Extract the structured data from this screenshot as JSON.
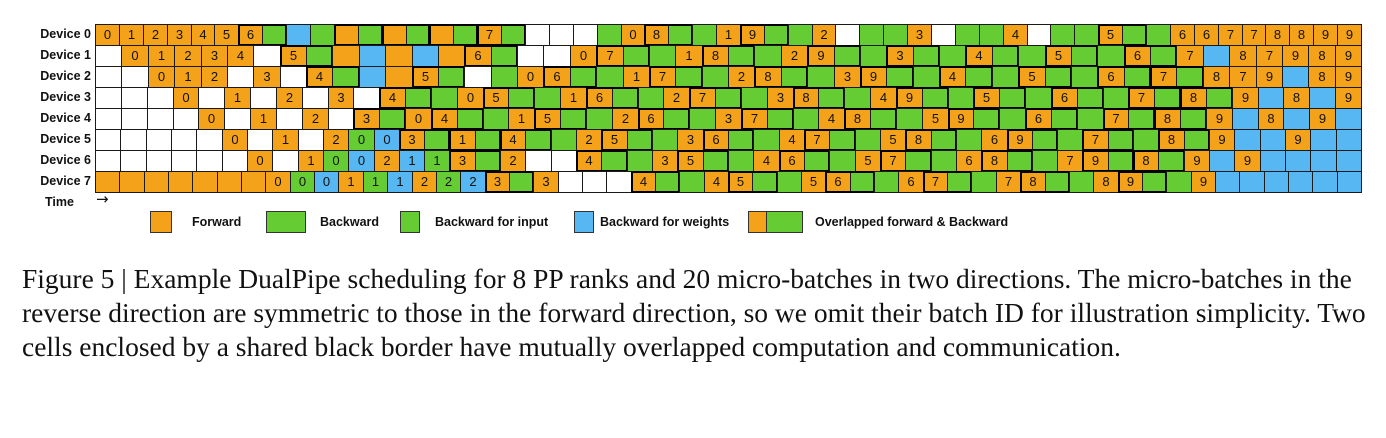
{
  "colors": {
    "F": "#f5a21b",
    "B": "#66cc33",
    "W": "#57b7f2",
    "empty": "#ffffff"
  },
  "figure": {
    "time_label": "Time",
    "time_arrow": "→",
    "devices": [
      {
        "label": "Device 0",
        "cells": [
          "F:0",
          "F:1",
          "F:2",
          "F:3",
          "F:4",
          "F:5",
          "F:6",
          "B",
          "W",
          "B",
          "F",
          "B",
          "F",
          "B",
          "F",
          "B",
          "F:7",
          "B",
          "E",
          "E",
          "E",
          "B",
          "F:0",
          "F:8",
          "B",
          "B",
          "F:1",
          "F:9",
          "B",
          "B",
          "F:2",
          "E",
          "B",
          "B",
          "F:3",
          "E",
          "B",
          "B",
          "F:4",
          "E",
          "B",
          "B",
          "F:5",
          "B",
          "B",
          "F:6",
          "F:6",
          "F:7",
          "F:7",
          "F:8",
          "F:8",
          "F:9",
          "F:9"
        ]
      },
      {
        "label": "Device 1",
        "cells": [
          "E",
          "F:0",
          "F:1",
          "F:2",
          "F:3",
          "F:4",
          "E",
          "F:5",
          "B",
          "F",
          "W",
          "F",
          "W",
          "F",
          "F:6",
          "B",
          "E",
          "E",
          "F:0",
          "F:7",
          "B",
          "B",
          "F:1",
          "F:8",
          "B",
          "B",
          "F:2",
          "F:9",
          "B",
          "B",
          "F:3",
          "B",
          "B",
          "F:4",
          "B",
          "B",
          "F:5",
          "B",
          "B",
          "F:6",
          "B",
          "F:7",
          "W",
          "F:8",
          "F:7",
          "F:9",
          "F:8",
          "F:9"
        ]
      },
      {
        "label": "Device 2",
        "cells": [
          "E",
          "E",
          "F:0",
          "F:1",
          "F:2",
          "E",
          "F:3",
          "E",
          "F:4",
          "B",
          "W",
          "F",
          "F:5",
          "B",
          "E",
          "B",
          "F:0",
          "F:6",
          "B",
          "B",
          "F:1",
          "F:7",
          "B",
          "B",
          "F:2",
          "F:8",
          "B",
          "B",
          "F:3",
          "F:9",
          "B",
          "B",
          "F:4",
          "B",
          "B",
          "F:5",
          "B",
          "B",
          "F:6",
          "B",
          "F:7",
          "B",
          "F:8",
          "F:7",
          "F:9",
          "W",
          "F:8",
          "F:9"
        ]
      },
      {
        "label": "Device 3",
        "cells": [
          "E",
          "E",
          "E",
          "F:0",
          "E",
          "F:1",
          "E",
          "F:2",
          "E",
          "F:3",
          "E",
          "F:4",
          "B",
          "B",
          "F:0",
          "F:5",
          "B",
          "B",
          "F:1",
          "F:6",
          "B",
          "B",
          "F:2",
          "F:7",
          "B",
          "B",
          "F:3",
          "F:8",
          "B",
          "B",
          "F:4",
          "F:9",
          "B",
          "B",
          "F:5",
          "B",
          "B",
          "F:6",
          "B",
          "B",
          "F:7",
          "B",
          "F:8",
          "B",
          "F:9",
          "W",
          "F:8",
          "W",
          "F:9"
        ]
      },
      {
        "label": "Device 4",
        "cells": [
          "E",
          "E",
          "E",
          "E",
          "F:0",
          "E",
          "F:1",
          "E",
          "F:2",
          "E",
          "F:3",
          "B",
          "F:0",
          "F:4",
          "B",
          "B",
          "F:1",
          "F:5",
          "B",
          "B",
          "F:2",
          "F:6",
          "B",
          "B",
          "F:3",
          "F:7",
          "B",
          "B",
          "F:4",
          "F:8",
          "B",
          "B",
          "F:5",
          "F:9",
          "B",
          "B",
          "F:6",
          "B",
          "B",
          "F:7",
          "B",
          "F:8",
          "B",
          "F:9",
          "W",
          "F:8",
          "W",
          "F:9",
          "W"
        ]
      },
      {
        "label": "Device 5",
        "cells": [
          "E",
          "E",
          "E",
          "E",
          "E",
          "F:0",
          "E",
          "F:1",
          "E",
          "F:2",
          "B:0",
          "W:0",
          "F:3",
          "B",
          "F:1",
          "B",
          "F:4",
          "B",
          "B",
          "F:2",
          "F:5",
          "B",
          "B",
          "F:3",
          "F:6",
          "B",
          "B",
          "F:4",
          "F:7",
          "B",
          "B",
          "F:5",
          "F:8",
          "B",
          "B",
          "F:6",
          "F:9",
          "B",
          "B",
          "F:7",
          "B",
          "B",
          "F:8",
          "B",
          "F:9",
          "W",
          "W",
          "F:9",
          "W",
          "W"
        ]
      },
      {
        "label": "Device 6",
        "cells": [
          "E",
          "E",
          "E",
          "E",
          "E",
          "E",
          "F:0",
          "E",
          "F:1",
          "B:0",
          "W:0",
          "F:2",
          "W:1",
          "B:1",
          "F:3",
          "B",
          "F:2",
          "E",
          "E",
          "F:4",
          "B",
          "B",
          "F:3",
          "F:5",
          "B",
          "B",
          "F:4",
          "F:6",
          "B",
          "B",
          "F:5",
          "F:7",
          "B",
          "B",
          "F:6",
          "F:8",
          "B",
          "B",
          "F:7",
          "F:9",
          "B",
          "F:8",
          "B",
          "F:9",
          "W",
          "F:9",
          "W",
          "W",
          "W",
          "W"
        ]
      },
      {
        "label": "Device 7",
        "cells": [
          "F",
          "F",
          "F",
          "F",
          "F",
          "F",
          "F",
          "F:0",
          "B:0",
          "W:0",
          "F:1",
          "B:1",
          "W:1",
          "F:2",
          "B:2",
          "W:2",
          "F:3",
          "B",
          "F:3",
          "E",
          "E",
          "E",
          "F:4",
          "B",
          "B",
          "F:4",
          "F:5",
          "B",
          "B",
          "F:5",
          "F:6",
          "B",
          "B",
          "F:6",
          "F:7",
          "B",
          "B",
          "F:7",
          "F:8",
          "B",
          "B",
          "F:8",
          "F:9",
          "B",
          "B",
          "F:9",
          "W",
          "W",
          "W",
          "W",
          "W",
          "W"
        ]
      }
    ],
    "legend": [
      {
        "key": "forward",
        "label": "Forward"
      },
      {
        "key": "backward",
        "label": "Backward"
      },
      {
        "key": "backward-input",
        "label": "Backward for input"
      },
      {
        "key": "backward-weights",
        "label": "Backward for weights"
      },
      {
        "key": "overlapped",
        "label": "Overlapped forward & Backward"
      }
    ]
  },
  "caption": {
    "text": "Figure 5 | Example DualPipe scheduling for 8 PP ranks and 20 micro-batches in two directions. The micro-batches in the reverse direction are symmetric to those in the forward direction, so we omit their batch ID for illustration simplicity. Two cells enclosed by a shared black border have mutually overlapped computation and communication."
  }
}
